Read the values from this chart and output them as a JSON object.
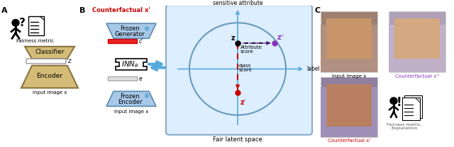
{
  "panel_A_label": "A",
  "panel_B_label": "B",
  "panel_C_label": "C",
  "encoder_color": "#d4bc78",
  "encoder_border_color": "#8b7340",
  "frozen_color": "#a8c8e8",
  "frozen_border_color": "#5a8ab0",
  "box_bg_color": "#ddeeff",
  "circle_color": "#6699bb",
  "red_color": "#cc0000",
  "purple_color": "#8833bb",
  "blue_arrow_color": "#55aadd",
  "face1_color": "#c8a880",
  "face2_color": "#c0b0c8",
  "face3_color": "#b09070",
  "face3_bg": "#9988aa"
}
